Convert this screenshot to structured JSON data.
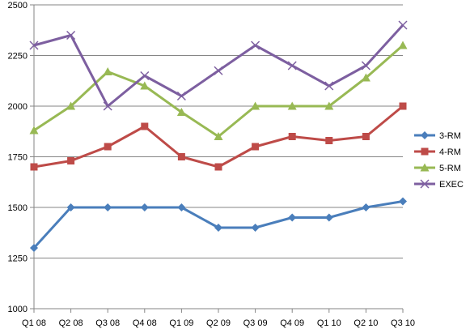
{
  "chart_data": {
    "type": "line",
    "title": "",
    "xlabel": "",
    "ylabel": "",
    "categories": [
      "Q1 08",
      "Q2 08",
      "Q3 08",
      "Q4 08",
      "Q1 09",
      "Q2 09",
      "Q3 09",
      "Q4 09",
      "Q1 10",
      "Q2 10",
      "Q3 10"
    ],
    "ylim": [
      1000,
      2500
    ],
    "yticks": [
      "1000",
      "1250",
      "1500",
      "1750",
      "2000",
      "2250",
      "2500"
    ],
    "grid": "horizontal",
    "legend": "right",
    "series": [
      {
        "name": "3-RM",
        "color": "#4a7ebb",
        "marker": "diamond",
        "values": [
          1300,
          1500,
          1500,
          1500,
          1500,
          1400,
          1400,
          1450,
          1450,
          1500,
          1530
        ]
      },
      {
        "name": "4-RM",
        "color": "#be4b48",
        "marker": "square",
        "values": [
          1700,
          1730,
          1800,
          1900,
          1750,
          1700,
          1800,
          1850,
          1830,
          1850,
          2000
        ]
      },
      {
        "name": "5-RM",
        "color": "#98b954",
        "marker": "triangle",
        "values": [
          1880,
          2000,
          2170,
          2100,
          1970,
          1850,
          2000,
          2000,
          2000,
          2140,
          2300
        ]
      },
      {
        "name": "EXEC",
        "color": "#7d5fa0",
        "marker": "x",
        "values": [
          2300,
          2350,
          2000,
          2150,
          2050,
          2175,
          2300,
          2200,
          2100,
          2200,
          2400
        ]
      }
    ]
  }
}
